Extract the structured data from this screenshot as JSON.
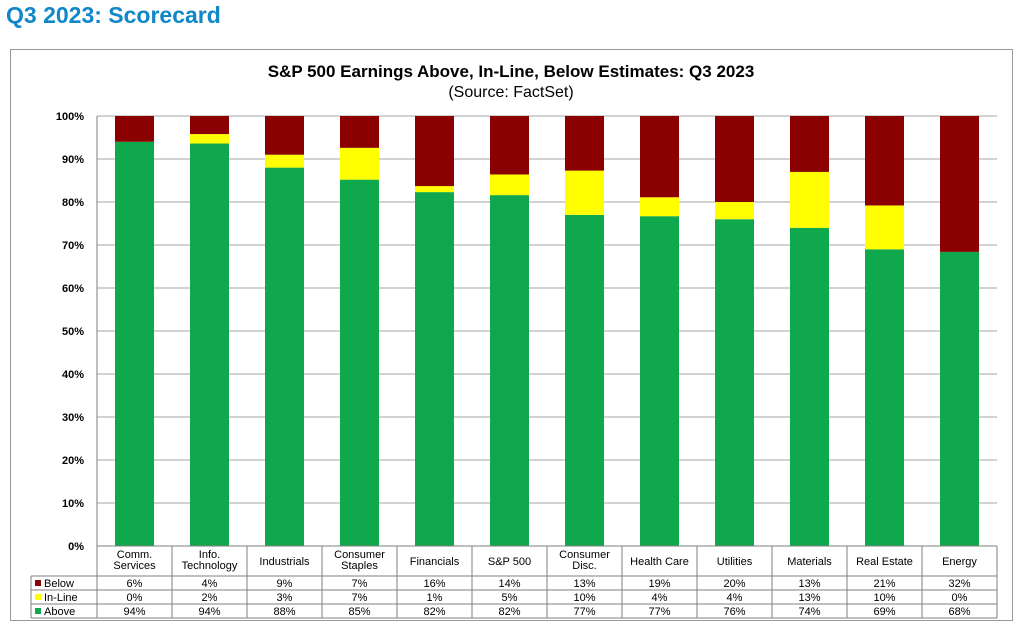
{
  "page": {
    "title": "Q3 2023: Scorecard"
  },
  "chart_data": {
    "type": "bar",
    "stacked": true,
    "title": "S&P 500 Earnings Above, In-Line, Below Estimates: Q3 2023",
    "subtitle": "(Source: FactSet)",
    "categories": [
      [
        "Comm.",
        "Services"
      ],
      [
        "Info.",
        "Technology"
      ],
      [
        "Industrials"
      ],
      [
        "Consumer",
        "Staples"
      ],
      [
        "Financials"
      ],
      [
        "S&P 500"
      ],
      [
        "Consumer",
        "Disc."
      ],
      [
        "Health Care"
      ],
      [
        "Utilities"
      ],
      [
        "Materials"
      ],
      [
        "Real Estate"
      ],
      [
        "Energy"
      ]
    ],
    "series": [
      {
        "name": "Above",
        "color": "#0fa84d",
        "values": [
          94,
          93.6,
          88,
          85.2,
          82.3,
          81.6,
          77,
          76.7,
          76,
          74,
          69,
          68.4
        ],
        "labels": [
          "94%",
          "94%",
          "88%",
          "85%",
          "82%",
          "82%",
          "77%",
          "77%",
          "76%",
          "74%",
          "69%",
          "68%"
        ]
      },
      {
        "name": "In-Line",
        "color": "#ffff00",
        "values": [
          0,
          2.2,
          3,
          7.4,
          1.4,
          4.8,
          10.3,
          4.4,
          4,
          13,
          10.2,
          0
        ],
        "labels": [
          "0%",
          "2%",
          "3%",
          "7%",
          "1%",
          "5%",
          "10%",
          "4%",
          "4%",
          "13%",
          "10%",
          "0%"
        ]
      },
      {
        "name": "Below",
        "color": "#8b0000",
        "values": [
          6,
          4.2,
          9,
          7.4,
          16.3,
          13.6,
          12.7,
          18.9,
          20,
          13,
          20.8,
          31.6
        ],
        "labels": [
          "6%",
          "4%",
          "9%",
          "7%",
          "16%",
          "14%",
          "13%",
          "19%",
          "20%",
          "13%",
          "21%",
          "32%"
        ]
      }
    ],
    "table_row_order": [
      "Below",
      "In-Line",
      "Above"
    ],
    "y_ticks": [
      "0%",
      "10%",
      "20%",
      "30%",
      "40%",
      "50%",
      "60%",
      "70%",
      "80%",
      "90%",
      "100%"
    ],
    "ylim": [
      0,
      100
    ],
    "grid": true,
    "legend": "data-table"
  }
}
